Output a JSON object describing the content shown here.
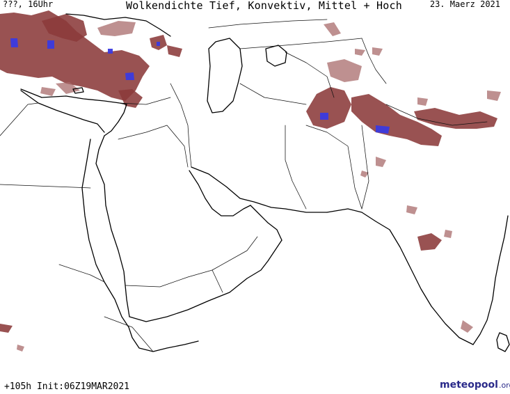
{
  "header": {
    "location_time": "???, 16Uhr",
    "title": "Wolkendichte  Tief, Konvektiv, Mittel + Hoch",
    "date": "23. Maerz 2021"
  },
  "footer": {
    "forecast_info": "+105h Init:06Z19MAR2021"
  },
  "logo": {
    "brand": "meteopool",
    "tld": ".org"
  },
  "colors": {
    "cloud": "#8b3a3a",
    "cloud_light": "#a86b6b",
    "high_cloud": "#3a3ae0",
    "background": "#ffffff",
    "coastline": "#000000"
  }
}
